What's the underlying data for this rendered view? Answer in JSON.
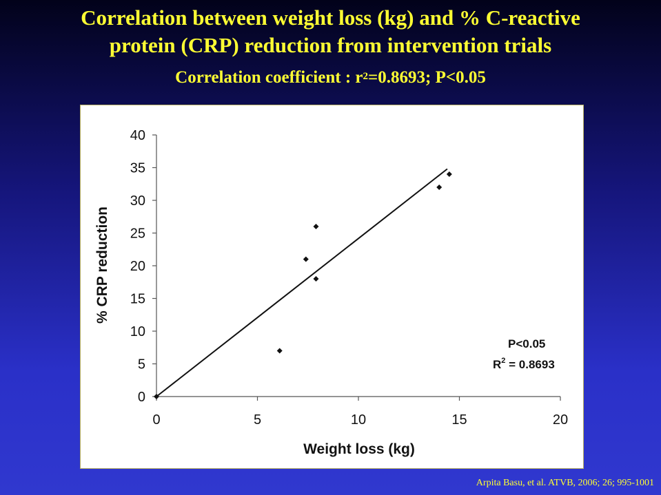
{
  "slide": {
    "title_line1": "Correlation between weight loss (kg) and % C-reactive",
    "title_line2": "protein (CRP) reduction from intervention trials",
    "subtitle_prefix": "Correlation coefficient : r",
    "subtitle_sup": "2",
    "subtitle_suffix": "=0.8693; P<0.05",
    "citation": "Arpita Basu, et al. ATVB, 2006; 26; 995-1001"
  },
  "chart_data": {
    "type": "scatter",
    "xlabel": "Weight loss (kg)",
    "ylabel": "% CRP reduction",
    "xlim": [
      0,
      20
    ],
    "ylim": [
      0,
      40
    ],
    "x_ticks": [
      0,
      5,
      10,
      15,
      20
    ],
    "y_ticks": [
      0,
      5,
      10,
      15,
      20,
      25,
      30,
      35,
      40
    ],
    "points": [
      {
        "x": 0,
        "y": 0
      },
      {
        "x": 6.1,
        "y": 7
      },
      {
        "x": 7.4,
        "y": 21
      },
      {
        "x": 7.9,
        "y": 18
      },
      {
        "x": 7.9,
        "y": 26
      },
      {
        "x": 14.0,
        "y": 32
      },
      {
        "x": 14.5,
        "y": 34
      }
    ],
    "trendline": {
      "x1": 0,
      "y1": 0,
      "x2": 14.4,
      "y2": 34.8
    },
    "annotation_p": "P<0.05",
    "annotation_r_prefix": "R",
    "annotation_r_sup": "2",
    "annotation_r_suffix": " = 0.8693",
    "grid": false,
    "legend": "none",
    "colors": {
      "marker": "#111111",
      "line": "#111111"
    }
  }
}
